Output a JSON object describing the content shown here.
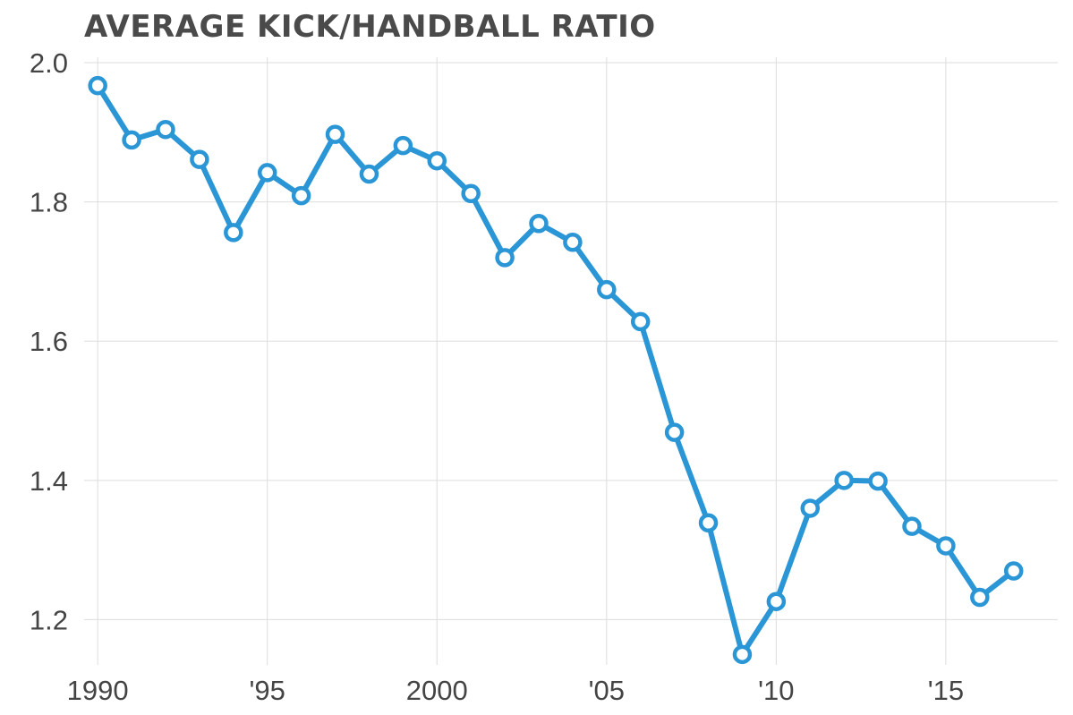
{
  "chart_data": {
    "type": "line",
    "title": "AVERAGE KICK/HANDBALL RATIO",
    "xlabel": "",
    "ylabel": "",
    "xlim": [
      1989.6,
      2018.3
    ],
    "ylim": [
      1.135,
      2.0
    ],
    "x_ticks": [
      {
        "value": 1990,
        "label": "1990"
      },
      {
        "value": 1995,
        "label": "'95"
      },
      {
        "value": 2000,
        "label": "2000"
      },
      {
        "value": 2005,
        "label": "'05"
      },
      {
        "value": 2010,
        "label": "'10"
      },
      {
        "value": 2015,
        "label": "'15"
      }
    ],
    "y_ticks": [
      {
        "value": 2.0,
        "label": "2.0"
      },
      {
        "value": 1.8,
        "label": "1.8"
      },
      {
        "value": 1.6,
        "label": "1.6"
      },
      {
        "value": 1.4,
        "label": "1.4"
      },
      {
        "value": 1.2,
        "label": "1.2"
      }
    ],
    "grid": true,
    "legend": "none",
    "series": [
      {
        "color": "#2b96d6",
        "x": [
          1990,
          1991,
          1992,
          1993,
          1994,
          1995,
          1996,
          1997,
          1998,
          1999,
          2000,
          2001,
          2002,
          2003,
          2004,
          2005,
          2006,
          2007,
          2008,
          2009,
          2010,
          2011,
          2012,
          2013,
          2014,
          2015,
          2016,
          2017
        ],
        "values": [
          1.967,
          1.889,
          1.904,
          1.861,
          1.756,
          1.842,
          1.809,
          1.897,
          1.84,
          1.881,
          1.859,
          1.812,
          1.72,
          1.769,
          1.742,
          1.674,
          1.628,
          1.469,
          1.339,
          1.15,
          1.226,
          1.36,
          1.4,
          1.399,
          1.334,
          1.306,
          1.232,
          1.27
        ]
      }
    ]
  }
}
